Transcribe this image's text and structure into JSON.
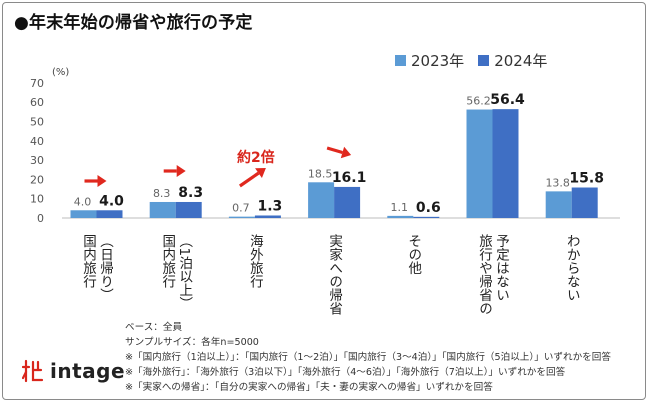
{
  "title": "●年末年始の帰省や旅行の予定",
  "legend": [
    "2023年",
    "2024年"
  ],
  "colors": {
    "s2023": "#5b9bd5",
    "s2024": "#3f6fc4",
    "arrow": "#e0281e",
    "note_red": "#d9261c"
  },
  "chart_data": {
    "type": "bar",
    "unit": "(%)",
    "ylim": [
      0,
      70
    ],
    "yticks": [
      0,
      10,
      20,
      30,
      40,
      50,
      60,
      70
    ],
    "grid": false,
    "legend_position": "top-right",
    "categories": [
      [
        "国内旅行",
        "（日帰り）"
      ],
      [
        "国内旅行",
        "（1泊以上）"
      ],
      [
        "海外旅行"
      ],
      [
        "実家への帰省"
      ],
      [
        "その他"
      ],
      [
        "旅行や帰省の",
        "予定はない"
      ],
      [
        "わからない"
      ]
    ],
    "series": [
      {
        "name": "2023年",
        "values": [
          4.0,
          8.3,
          0.7,
          18.5,
          1.1,
          56.2,
          13.8
        ]
      },
      {
        "name": "2024年",
        "values": [
          4.0,
          8.3,
          1.3,
          16.1,
          0.6,
          56.4,
          15.8
        ]
      }
    ],
    "annotations": [
      {
        "type": "arrow",
        "category": 0,
        "direction": "right"
      },
      {
        "type": "arrow",
        "category": 1,
        "direction": "right"
      },
      {
        "type": "arrow",
        "category": 2,
        "direction": "up-right",
        "text": "約2倍"
      },
      {
        "type": "arrow",
        "category": 3,
        "direction": "down-right"
      }
    ]
  },
  "notes": [
    "ベース：全員",
    "サンプルサイズ：各年n=5000",
    "※「国内旅行（1泊以上）」：「国内旅行（1～2泊）」「国内旅行（3～4泊）」「国内旅行（5泊以上）」いずれかを回答",
    "※「海外旅行」：「海外旅行（3泊以下）」「海外旅行（4～6泊）」「海外旅行（7泊以上）」いずれかを回答",
    "※「実家への帰省」：「自分の実家への帰省」「夫・妻の実家への帰省」いずれかを回答"
  ],
  "logo_text": "intage"
}
